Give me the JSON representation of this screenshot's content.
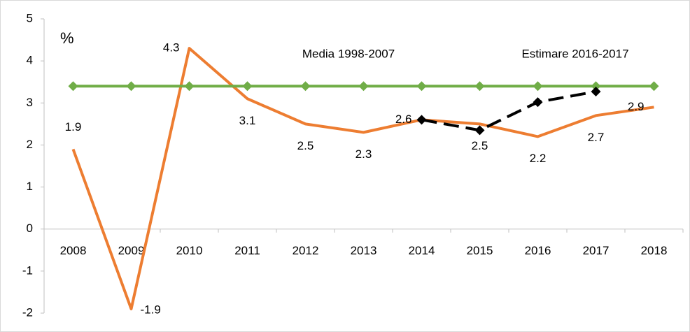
{
  "chart_data": {
    "type": "line",
    "y_label": "%",
    "categories": [
      "2008",
      "2009",
      "2010",
      "2011",
      "2012",
      "2013",
      "2014",
      "2015",
      "2016",
      "2017",
      "2018"
    ],
    "series": [
      {
        "color": "#ed7d31",
        "values": [
          1.9,
          -1.9,
          4.3,
          3.1,
          2.5,
          2.3,
          2.6,
          2.5,
          2.2,
          2.7,
          2.9
        ]
      },
      {
        "name": "Media 1998-2007",
        "color": "#70ad47",
        "values": [
          3.4,
          3.4,
          3.4,
          3.4,
          3.4,
          3.4,
          3.4,
          3.4,
          3.4,
          3.4,
          3.4
        ]
      },
      {
        "name": "Estimare 2016-2017",
        "color": "#000000",
        "dashed": true,
        "values": [
          null,
          null,
          null,
          null,
          null,
          null,
          2.6,
          2.35,
          3.02,
          3.27,
          null
        ]
      }
    ],
    "ylim": [
      -2,
      5
    ],
    "yticks": [
      -2,
      -1,
      0,
      1,
      2,
      3,
      4,
      5
    ],
    "grid": false
  }
}
